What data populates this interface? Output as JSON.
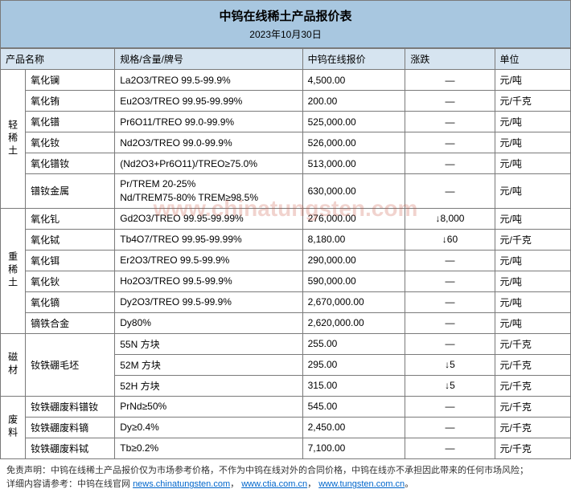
{
  "header": {
    "title": "中钨在线稀土产品报价表",
    "date": "2023年10月30日"
  },
  "columns": {
    "name": "产品名称",
    "spec": "规格/含量/牌号",
    "price": "中钨在线报价",
    "change": "涨跌",
    "unit": "单位"
  },
  "categories": [
    {
      "label": "轻稀土",
      "rows": [
        {
          "name": "氧化镧",
          "spec": "La2O3/TREO 99.5-99.9%",
          "price": "4,500.00",
          "change": "—",
          "unit": "元/吨"
        },
        {
          "name": "氧化铕",
          "spec": "Eu2O3/TREO 99.95-99.99%",
          "price": "200.00",
          "change": "—",
          "unit": "元/千克"
        },
        {
          "name": "氧化镨",
          "spec": "Pr6O11/TREO 99.0-99.9%",
          "price": "525,000.00",
          "change": "—",
          "unit": "元/吨"
        },
        {
          "name": "氧化钕",
          "spec": "Nd2O3/TREO 99.0-99.9%",
          "price": "526,000.00",
          "change": "—",
          "unit": "元/吨"
        },
        {
          "name": "氧化镨钕",
          "spec": "(Nd2O3+Pr6O11)/TREO≥75.0%",
          "price": "513,000.00",
          "change": "—",
          "unit": "元/吨"
        },
        {
          "name": "镨钕金属",
          "spec": "Pr/TREM 20-25%\nNd/TREM75-80% TREM≥98.5%",
          "price": "630,000.00",
          "change": "—",
          "unit": "元/吨"
        }
      ]
    },
    {
      "label": "重稀土",
      "rows": [
        {
          "name": "氧化钆",
          "spec": "Gd2O3/TREO 99.95-99.99%",
          "price": "276,000.00",
          "change": "↓8,000",
          "unit": "元/吨"
        },
        {
          "name": "氧化铽",
          "spec": "Tb4O7/TREO 99.95-99.99%",
          "price": "8,180.00",
          "change": "↓60",
          "unit": "元/千克"
        },
        {
          "name": "氧化铒",
          "spec": "Er2O3/TREO 99.5-99.9%",
          "price": "290,000.00",
          "change": "—",
          "unit": "元/吨"
        },
        {
          "name": "氧化钬",
          "spec": "Ho2O3/TREO 99.5-99.9%",
          "price": "590,000.00",
          "change": "—",
          "unit": "元/吨"
        },
        {
          "name": "氧化镝",
          "spec": "Dy2O3/TREO 99.5-99.9%",
          "price": "2,670,000.00",
          "change": "—",
          "unit": "元/吨"
        },
        {
          "name": "镝铁合金",
          "spec": "Dy80%",
          "price": "2,620,000.00",
          "change": "—",
          "unit": "元/吨"
        }
      ]
    },
    {
      "label": "磁材",
      "rows": [
        {
          "name": "钕铁硼毛坯",
          "spec": "55N 方块",
          "price": "255.00",
          "change": "—",
          "unit": "元/千克",
          "name_rowspan": 3
        },
        {
          "name": "",
          "spec": "52M 方块",
          "price": "295.00",
          "change": "↓5",
          "unit": "元/千克"
        },
        {
          "name": "",
          "spec": "52H 方块",
          "price": "315.00",
          "change": "↓5",
          "unit": "元/千克"
        }
      ]
    },
    {
      "label": "废料",
      "rows": [
        {
          "name": "钕铁硼废料镨钕",
          "spec": "PrNd≥50%",
          "price": "545.00",
          "change": "—",
          "unit": "元/千克"
        },
        {
          "name": "钕铁硼废料镝",
          "spec": "Dy≥0.4%",
          "price": "2,450.00",
          "change": "—",
          "unit": "元/千克"
        },
        {
          "name": "钕铁硼废料铽",
          "spec": "Tb≥0.2%",
          "price": "7,100.00",
          "change": "—",
          "unit": "元/千克"
        }
      ]
    }
  ],
  "footer": {
    "disclaimer": "免责声明：中钨在线稀土产品报价仅为市场参考价格，不作为中钨在线对外的合同价格，中钨在线亦不承担因此带来的任何市场风险；",
    "detail_prefix": "详细内容请参考：中钨在线官网 ",
    "link1": "news.chinatungsten.com",
    "link2": "www.ctia.com.cn",
    "link3": "www.tungsten.com.cn",
    "sep": "，",
    "period": "。"
  },
  "watermark": "www.chinatungsten.com"
}
